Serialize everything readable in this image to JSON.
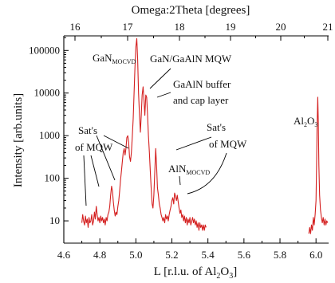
{
  "chart_data": {
    "type": "line",
    "top_axis": {
      "label": "Omega:2Theta [degrees]",
      "ticks": [
        "16",
        "17",
        "18",
        "19",
        "20",
        "21"
      ]
    },
    "x_axis": {
      "label_main": "L [r.l.u. of Al",
      "label_sub": "2",
      "label_sub2": "O",
      "label_sub3": "3",
      "label_end": "]",
      "range": [
        4.6,
        6.07
      ],
      "ticks": [
        "4.6",
        "4.8",
        "5.0",
        "5.2",
        "5.4",
        "5.6",
        "5.8",
        "6.0"
      ]
    },
    "y_axis": {
      "label": "Intensity [arb.units]",
      "scale": "log",
      "range": [
        3,
        220000
      ],
      "ticks": [
        "10",
        "100",
        "1000",
        "10000",
        "100000"
      ]
    },
    "series": [
      {
        "color": "#d42020",
        "points": [
          [
            4.7,
            9
          ],
          [
            4.705,
            14
          ],
          [
            4.71,
            10
          ],
          [
            4.715,
            8
          ],
          [
            4.72,
            13
          ],
          [
            4.725,
            9
          ],
          [
            4.73,
            11
          ],
          [
            4.735,
            7
          ],
          [
            4.74,
            12
          ],
          [
            4.745,
            9
          ],
          [
            4.75,
            10
          ],
          [
            4.755,
            14
          ],
          [
            4.76,
            8
          ],
          [
            4.765,
            10
          ],
          [
            4.77,
            16
          ],
          [
            4.775,
            11
          ],
          [
            4.78,
            22
          ],
          [
            4.785,
            14
          ],
          [
            4.79,
            10
          ],
          [
            4.795,
            12
          ],
          [
            4.8,
            9
          ],
          [
            4.805,
            13
          ],
          [
            4.81,
            10
          ],
          [
            4.815,
            12
          ],
          [
            4.82,
            9
          ],
          [
            4.825,
            11
          ],
          [
            4.83,
            8
          ],
          [
            4.835,
            12
          ],
          [
            4.84,
            10
          ],
          [
            4.845,
            14
          ],
          [
            4.85,
            16
          ],
          [
            4.855,
            22
          ],
          [
            4.86,
            40
          ],
          [
            4.865,
            65
          ],
          [
            4.87,
            50
          ],
          [
            4.875,
            28
          ],
          [
            4.88,
            18
          ],
          [
            4.885,
            13
          ],
          [
            4.89,
            16
          ],
          [
            4.895,
            14
          ],
          [
            4.9,
            22
          ],
          [
            4.905,
            30
          ],
          [
            4.91,
            50
          ],
          [
            4.915,
            90
          ],
          [
            4.92,
            150
          ],
          [
            4.925,
            250
          ],
          [
            4.93,
            400
          ],
          [
            4.935,
            500
          ],
          [
            4.94,
            350
          ],
          [
            4.945,
            500
          ],
          [
            4.95,
            900
          ],
          [
            4.955,
            1000
          ],
          [
            4.96,
            700
          ],
          [
            4.965,
            320
          ],
          [
            4.97,
            250
          ],
          [
            4.975,
            400
          ],
          [
            4.98,
            900
          ],
          [
            4.985,
            2500
          ],
          [
            4.99,
            10000
          ],
          [
            4.995,
            40000
          ],
          [
            5.0,
            120000
          ],
          [
            5.005,
            190000
          ],
          [
            5.01,
            60000
          ],
          [
            5.015,
            10000
          ],
          [
            5.02,
            3000
          ],
          [
            5.025,
            1200
          ],
          [
            5.03,
            3000
          ],
          [
            5.035,
            9000
          ],
          [
            5.04,
            14000
          ],
          [
            5.045,
            7000
          ],
          [
            5.05,
            3000
          ],
          [
            5.055,
            9000
          ],
          [
            5.06,
            8000
          ],
          [
            5.065,
            3000
          ],
          [
            5.07,
            1000
          ],
          [
            5.075,
            400
          ],
          [
            5.08,
            150
          ],
          [
            5.085,
            60
          ],
          [
            5.09,
            25
          ],
          [
            5.095,
            20
          ],
          [
            5.1,
            40
          ],
          [
            5.105,
            150
          ],
          [
            5.11,
            500
          ],
          [
            5.115,
            200
          ],
          [
            5.12,
            60
          ],
          [
            5.125,
            40
          ],
          [
            5.13,
            25
          ],
          [
            5.135,
            20
          ],
          [
            5.14,
            14
          ],
          [
            5.145,
            12
          ],
          [
            5.15,
            10
          ],
          [
            5.155,
            12
          ],
          [
            5.16,
            9
          ],
          [
            5.165,
            14
          ],
          [
            5.17,
            11
          ],
          [
            5.175,
            13
          ],
          [
            5.18,
            10
          ],
          [
            5.185,
            14
          ],
          [
            5.19,
            18
          ],
          [
            5.195,
            22
          ],
          [
            5.2,
            30
          ],
          [
            5.205,
            35
          ],
          [
            5.21,
            25
          ],
          [
            5.215,
            45
          ],
          [
            5.22,
            38
          ],
          [
            5.225,
            30
          ],
          [
            5.23,
            40
          ],
          [
            5.235,
            28
          ],
          [
            5.24,
            20
          ],
          [
            5.245,
            15
          ],
          [
            5.25,
            18
          ],
          [
            5.255,
            12
          ],
          [
            5.26,
            14
          ],
          [
            5.265,
            10
          ],
          [
            5.27,
            13
          ],
          [
            5.275,
            9
          ],
          [
            5.28,
            12
          ],
          [
            5.285,
            8
          ],
          [
            5.29,
            11
          ],
          [
            5.295,
            9
          ],
          [
            5.3,
            12
          ],
          [
            5.305,
            8
          ],
          [
            5.31,
            10
          ],
          [
            5.315,
            12
          ],
          [
            5.32,
            9
          ],
          [
            5.325,
            11
          ],
          [
            5.33,
            8
          ],
          [
            5.335,
            10
          ],
          [
            5.34,
            7
          ],
          [
            5.345,
            9
          ],
          [
            5.35,
            6
          ],
          [
            5.355,
            9
          ],
          [
            5.36,
            7
          ],
          [
            5.365,
            8
          ],
          [
            5.37,
            6
          ],
          [
            5.375,
            8
          ],
          [
            5.38,
            6
          ],
          [
            5.385,
            8
          ],
          [
            5.39,
            7
          ]
        ]
      },
      {
        "color": "#d42020",
        "points": [
          [
            5.96,
            5
          ],
          [
            5.965,
            7
          ],
          [
            5.97,
            5
          ],
          [
            5.975,
            8
          ],
          [
            5.98,
            6
          ],
          [
            5.985,
            12
          ],
          [
            5.99,
            8
          ],
          [
            5.995,
            14
          ],
          [
            6.0,
            30
          ],
          [
            6.003,
            200
          ],
          [
            6.006,
            1500
          ],
          [
            6.01,
            8000
          ],
          [
            6.013,
            2000
          ],
          [
            6.016,
            200
          ],
          [
            6.02,
            40
          ],
          [
            6.025,
            18
          ],
          [
            6.03,
            12
          ],
          [
            6.035,
            9
          ],
          [
            6.04,
            12
          ],
          [
            6.045,
            8
          ],
          [
            6.05,
            11
          ],
          [
            6.055,
            8
          ],
          [
            6.06,
            10
          ],
          [
            6.065,
            9
          ]
        ]
      }
    ],
    "annotations": [
      {
        "id": "gan",
        "text": "GaN",
        "sub": "MOCVD"
      },
      {
        "id": "mqw",
        "text": "GaN/GaAlN MQW"
      },
      {
        "id": "buffer1",
        "text": "GaAlN buffer"
      },
      {
        "id": "buffer2",
        "text": "and cap layer"
      },
      {
        "id": "satl1",
        "text": "Sat's"
      },
      {
        "id": "satl2",
        "text": "of MQW"
      },
      {
        "id": "satr1",
        "text": "Sat's"
      },
      {
        "id": "satr2",
        "text": "of MQW"
      },
      {
        "id": "aln",
        "text": "AlN",
        "sub": "MOCVD"
      },
      {
        "id": "al2o3",
        "text": "Al",
        "sub": "2",
        "text2": "O",
        "sub2": "3"
      }
    ]
  }
}
